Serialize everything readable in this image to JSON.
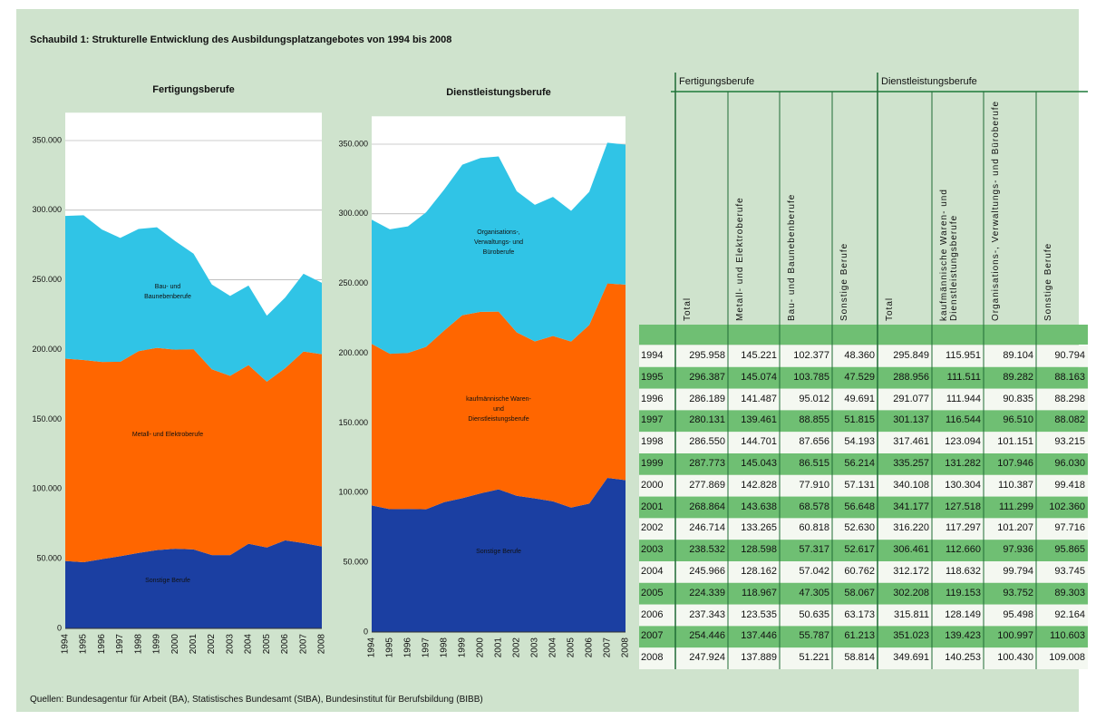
{
  "title": "Schaubild 1: Strukturelle Entwicklung des Ausbildungsplatzangebotes von 1994 bis 2008",
  "source": "Quellen: Bundesagentur für Arbeit (BA), Statistisches Bundesamt (StBA), Bundesinstitut für Berufsbildung (BIBB)",
  "chart_data": [
    {
      "type": "stacked_area",
      "title": "Fertigungsberufe",
      "categories": [
        "1994",
        "1995",
        "1996",
        "1997",
        "1998",
        "1999",
        "2000",
        "2001",
        "2002",
        "2003",
        "2004",
        "2005",
        "2006",
        "2007",
        "2008"
      ],
      "ylim": [
        0,
        370000
      ],
      "yticks": [
        {
          "value": 0,
          "label": "0"
        },
        {
          "value": 50000,
          "label": "50.000"
        },
        {
          "value": 100000,
          "label": "100.000"
        },
        {
          "value": 150000,
          "label": "150.000"
        },
        {
          "value": 200000,
          "label": "200.000"
        },
        {
          "value": 250000,
          "label": "250.000"
        },
        {
          "value": 300000,
          "label": "300.000"
        },
        {
          "value": 350000,
          "label": "350.000"
        }
      ],
      "grid": true,
      "series": [
        {
          "name": "Sonstige Berufe",
          "color": "#1b3fa2",
          "values": [
            48360,
            47529,
            49691,
            51815,
            54193,
            56214,
            57131,
            56648,
            52630,
            52617,
            60762,
            58067,
            63173,
            61213,
            58814
          ]
        },
        {
          "name": "Metall- und Elektroberufe",
          "color": "#ff6600",
          "values": [
            145221,
            145074,
            141487,
            139461,
            144701,
            145043,
            142828,
            143638,
            133265,
            128598,
            128162,
            118967,
            123535,
            137446,
            137889
          ]
        },
        {
          "name": "Bau- und Baunebenberufe",
          "color": "#30c4e6",
          "values": [
            102377,
            103785,
            95012,
            88855,
            87656,
            86515,
            77910,
            68578,
            60818,
            57317,
            57042,
            47305,
            50635,
            55787,
            51221
          ]
        }
      ]
    },
    {
      "type": "stacked_area",
      "title": "Dienstleistungsberufe",
      "categories": [
        "1994",
        "1995",
        "1996",
        "1997",
        "1998",
        "1999",
        "2000",
        "2001",
        "2002",
        "2003",
        "2004",
        "2005",
        "2006",
        "2007",
        "2008"
      ],
      "ylim": [
        0,
        370000
      ],
      "yticks": [
        {
          "value": 0,
          "label": "0"
        },
        {
          "value": 50000,
          "label": "50.000"
        },
        {
          "value": 100000,
          "label": "100.000"
        },
        {
          "value": 150000,
          "label": "150.000"
        },
        {
          "value": 200000,
          "label": "200.000"
        },
        {
          "value": 250000,
          "label": "250.000"
        },
        {
          "value": 300000,
          "label": "300.000"
        },
        {
          "value": 350000,
          "label": "350.000"
        }
      ],
      "grid": true,
      "series": [
        {
          "name": "Sonstige Berufe",
          "color": "#1b3fa2",
          "values": [
            90794,
            88163,
            88298,
            88082,
            93215,
            96030,
            99418,
            102360,
            97716,
            95865,
            93745,
            89303,
            92164,
            110603,
            109008
          ]
        },
        {
          "name": "kaufmännische Waren- und Dienstleistungsberufe",
          "color": "#ff6600",
          "values": [
            115951,
            111511,
            111944,
            116544,
            123094,
            131282,
            130304,
            127518,
            117297,
            112660,
            118632,
            119153,
            128149,
            139423,
            140253
          ]
        },
        {
          "name": "Organisations-, Verwaltungs- und Büroberufe",
          "color": "#30c4e6",
          "values": [
            89104,
            89282,
            90835,
            96510,
            101151,
            107946,
            110387,
            111299,
            101207,
            97936,
            99794,
            93752,
            95498,
            100997,
            100430
          ]
        }
      ]
    }
  ],
  "table": {
    "groups": [
      "Fertigungsberufe",
      "Dienstleistungsberufe"
    ],
    "columns": [
      "Total",
      "Metall- und Elektroberufe",
      "Bau- und Baunebenberufe",
      "Sonstige Berufe",
      "Total",
      "kaufmännische Waren- und Dienstleistungsberufe",
      "Organisations-, Verwaltungs- und Büroberufe",
      "Sonstige Berufe"
    ],
    "rows": [
      [
        "1994",
        "295.958",
        "145.221",
        "102.377",
        "48.360",
        "295.849",
        "115.951",
        "89.104",
        "90.794"
      ],
      [
        "1995",
        "296.387",
        "145.074",
        "103.785",
        "47.529",
        "288.956",
        "111.511",
        "89.282",
        "88.163"
      ],
      [
        "1996",
        "286.189",
        "141.487",
        "95.012",
        "49.691",
        "291.077",
        "111.944",
        "90.835",
        "88.298"
      ],
      [
        "1997",
        "280.131",
        "139.461",
        "88.855",
        "51.815",
        "301.137",
        "116.544",
        "96.510",
        "88.082"
      ],
      [
        "1998",
        "286.550",
        "144.701",
        "87.656",
        "54.193",
        "317.461",
        "123.094",
        "101.151",
        "93.215"
      ],
      [
        "1999",
        "287.773",
        "145.043",
        "86.515",
        "56.214",
        "335.257",
        "131.282",
        "107.946",
        "96.030"
      ],
      [
        "2000",
        "277.869",
        "142.828",
        "77.910",
        "57.131",
        "340.108",
        "130.304",
        "110.387",
        "99.418"
      ],
      [
        "2001",
        "268.864",
        "143.638",
        "68.578",
        "56.648",
        "341.177",
        "127.518",
        "111.299",
        "102.360"
      ],
      [
        "2002",
        "246.714",
        "133.265",
        "60.818",
        "52.630",
        "316.220",
        "117.297",
        "101.207",
        "97.716"
      ],
      [
        "2003",
        "238.532",
        "128.598",
        "57.317",
        "52.617",
        "306.461",
        "112.660",
        "97.936",
        "95.865"
      ],
      [
        "2004",
        "245.966",
        "128.162",
        "57.042",
        "60.762",
        "312.172",
        "118.632",
        "99.794",
        "93.745"
      ],
      [
        "2005",
        "224.339",
        "118.967",
        "47.305",
        "58.067",
        "302.208",
        "119.153",
        "93.752",
        "89.303"
      ],
      [
        "2006",
        "237.343",
        "123.535",
        "50.635",
        "63.173",
        "315.811",
        "128.149",
        "95.498",
        "92.164"
      ],
      [
        "2007",
        "254.446",
        "137.446",
        "55.787",
        "61.213",
        "351.023",
        "139.423",
        "100.997",
        "110.603"
      ],
      [
        "2008",
        "247.924",
        "137.889",
        "51.221",
        "58.814",
        "349.691",
        "140.253",
        "100.430",
        "109.008"
      ]
    ]
  }
}
